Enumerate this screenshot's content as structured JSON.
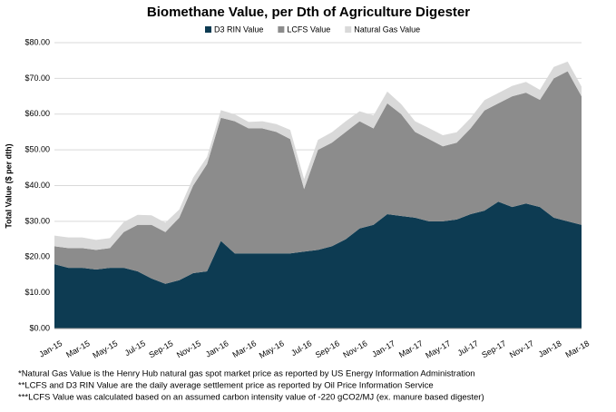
{
  "chart_data": {
    "type": "stacked-area",
    "title": "Biomethane Value, per Dth of Agriculture Digester",
    "y_label": "Total Value ($ per dth)",
    "categories": [
      "Jan-15",
      null,
      "Mar-15",
      null,
      "May-15",
      null,
      "Jul-15",
      null,
      "Sep-15",
      null,
      "Nov-15",
      null,
      "Jan-16",
      null,
      "Mar-16",
      null,
      "May-16",
      null,
      "Jul-16",
      null,
      "Sep-16",
      null,
      "Nov-16",
      null,
      "Jan-17",
      null,
      "Mar-17",
      null,
      "May-17",
      null,
      "Jul-17",
      null,
      "Sep-17",
      null,
      "Nov-17",
      null,
      "Jan-18",
      null,
      "Mar-18"
    ],
    "series": [
      {
        "name": "D3 RIN Value",
        "color": "#0d3b52",
        "values": [
          18,
          17,
          17,
          16.5,
          17,
          17,
          16,
          14,
          12.5,
          13.5,
          15.5,
          16,
          24.5,
          21,
          21,
          21,
          21,
          21,
          21.5,
          22,
          23,
          25,
          28,
          29,
          32,
          31.5,
          31,
          30,
          30,
          30.5,
          32,
          33,
          35.5,
          34,
          35,
          34,
          31,
          30,
          29
        ]
      },
      {
        "name": "LCFS Value",
        "color": "#8c8c8c",
        "values": [
          5,
          5.5,
          5.5,
          5.5,
          5.5,
          10,
          13,
          15,
          14.5,
          17.5,
          24.5,
          30,
          34.5,
          37,
          35,
          35,
          34,
          32,
          17.5,
          28,
          29,
          30,
          30,
          27,
          31,
          28.5,
          24,
          23,
          21,
          21.5,
          24,
          28,
          27.5,
          31,
          31,
          30,
          39,
          42,
          36
        ]
      },
      {
        "name": "Natural Gas Value",
        "color": "#d9d9d9",
        "values": [
          3,
          3,
          3,
          2.8,
          2.8,
          2.8,
          2.8,
          2.7,
          2.6,
          2.3,
          2.2,
          2,
          2.1,
          1.9,
          1.8,
          2,
          2.2,
          2.6,
          2.8,
          2.8,
          2.9,
          3,
          2.8,
          3.6,
          3.3,
          2.8,
          3,
          3.1,
          3.1,
          2.9,
          2.9,
          2.9,
          2.9,
          2.9,
          3,
          2.8,
          3.2,
          2.7,
          2.7
        ]
      }
    ],
    "ylim": [
      0,
      80
    ],
    "yticks": [
      {
        "value": 0,
        "label": "$0.00"
      },
      {
        "value": 10,
        "label": "$10.00"
      },
      {
        "value": 20,
        "label": "$20.00"
      },
      {
        "value": 30,
        "label": "$30.00"
      },
      {
        "value": 40,
        "label": "$40.00"
      },
      {
        "value": 50,
        "label": "$50.00"
      },
      {
        "value": 60,
        "label": "$60.00"
      },
      {
        "value": 70,
        "label": "$70.00"
      },
      {
        "value": 80,
        "label": "$80.00"
      }
    ],
    "grid": true,
    "legend": "top",
    "notes": [
      "*Natural Gas Value is the Henry Hub natural gas spot market price as reported by US Energy Information Administration",
      "**LCFS and D3 RIN Value are the daily average settlement price as reported by Oil Price Information Service",
      "***LCFS Value was calculated based on an assumed carbon intensity value of -220 gCO2/MJ (ex. manure based digester)"
    ]
  }
}
